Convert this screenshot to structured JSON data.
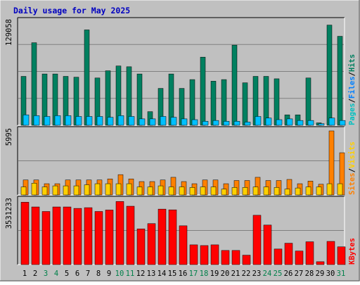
{
  "chart_data": {
    "title": "Daily usage for May 2025",
    "type": "bar",
    "categories": [
      "1",
      "2",
      "3",
      "4",
      "5",
      "6",
      "7",
      "8",
      "9",
      "10",
      "11",
      "12",
      "13",
      "14",
      "15",
      "16",
      "17",
      "18",
      "19",
      "20",
      "21",
      "22",
      "23",
      "24",
      "25",
      "26",
      "27",
      "28",
      "29",
      "30",
      "31"
    ],
    "weekend_days": [
      "3",
      "4",
      "10",
      "11",
      "17",
      "18",
      "24",
      "25",
      "31"
    ],
    "panels": [
      {
        "id": "hits-files-pages",
        "max_label": "129058",
        "ymax": 129058,
        "legend": [
          "Pages",
          "/",
          "Files",
          "/",
          "Hits"
        ],
        "series": [
          {
            "name": "Hits",
            "color": "#008060",
            "values": [
              61000,
              103000,
              64000,
              64000,
              61000,
              60000,
              119000,
              59000,
              68000,
              74000,
              73000,
              64000,
              17000,
              46000,
              64000,
              46000,
              57000,
              85000,
              55000,
              57000,
              100000,
              53000,
              61000,
              61000,
              58000,
              13000,
              13000,
              59000,
              3000,
              125000,
              111000
            ]
          },
          {
            "name": "Files",
            "color": "#00C0FF",
            "values": [
              13000,
              12000,
              11000,
              12000,
              12000,
              11000,
              11000,
              11000,
              10000,
              12000,
              11000,
              8000,
              8000,
              11000,
              10000,
              8000,
              7000,
              5000,
              6000,
              5000,
              5000,
              4000,
              11000,
              9000,
              7000,
              8000,
              6000,
              6000,
              2000,
              9000,
              6000
            ]
          },
          {
            "name": "Pages",
            "color": "#00A0E0",
            "values": [
              6000,
              5000,
              5000,
              5000,
              5000,
              4000,
              4000,
              4000,
              4000,
              4000,
              4000,
              3000,
              2000,
              4000,
              4000,
              3000,
              3000,
              2000,
              2000,
              2000,
              2000,
              2000,
              4000,
              3000,
              3000,
              3000,
              2000,
              2000,
              1000,
              3000,
              2000
            ]
          }
        ]
      },
      {
        "id": "visits-sites",
        "max_label": "5995",
        "ymax": 5995,
        "legend": [
          "Sites",
          "/",
          "Visits"
        ],
        "series": [
          {
            "name": "Visits",
            "color": "#FF8000",
            "values": [
              1400,
              1400,
              1050,
              1050,
              1400,
              1400,
              1400,
              1400,
              1500,
              1900,
              1500,
              1250,
              1250,
              1400,
              1650,
              1250,
              1050,
              1400,
              1400,
              1050,
              1350,
              1350,
              1650,
              1350,
              1350,
              1450,
              1050,
              1300,
              1000,
              5995,
              3950
            ]
          },
          {
            "name": "Sites",
            "color": "#FFD000",
            "values": [
              750,
              1100,
              750,
              850,
              850,
              850,
              950,
              1050,
              1050,
              1050,
              1050,
              750,
              750,
              850,
              750,
              750,
              700,
              750,
              750,
              550,
              700,
              700,
              750,
              750,
              700,
              550,
              650,
              750,
              750,
              1050,
              1050
            ]
          }
        ]
      },
      {
        "id": "kbytes",
        "max_label": "3531233",
        "ymax": 3531233,
        "legend": [
          "KBytes"
        ],
        "series": [
          {
            "name": "KBytes",
            "color": "#FF0000",
            "values": [
              3440000,
              3180000,
              2930000,
              3180000,
              3180000,
              3100000,
              3140000,
              2930000,
              3010000,
              3480000,
              3220000,
              1970000,
              2260000,
              3060000,
              3020000,
              2140000,
              1090000,
              1050000,
              1090000,
              780000,
              780000,
              520000,
              2720000,
              2180000,
              860000,
              1180000,
              750000,
              1260000,
              160000,
              1280000,
              980000
            ]
          }
        ]
      }
    ]
  }
}
